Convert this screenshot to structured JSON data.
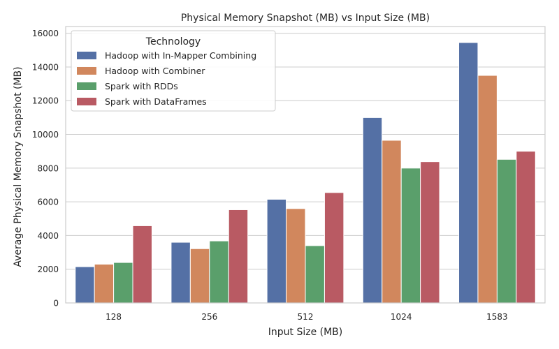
{
  "chart_data": {
    "type": "bar",
    "title": "Physical Memory Snapshot (MB) vs Input Size (MB)",
    "xlabel": "Input Size (MB)",
    "ylabel": "Average Physical Memory Snapshot (MB)",
    "categories": [
      "128",
      "256",
      "512",
      "1024",
      "1583"
    ],
    "ylim": [
      0,
      16400
    ],
    "yticks": [
      0,
      2000,
      4000,
      6000,
      8000,
      10000,
      12000,
      14000,
      16000
    ],
    "grid": true,
    "legend": {
      "title": "Technology",
      "placement": "top-left"
    },
    "series": [
      {
        "name": "Hadoop with In-Mapper Combining",
        "color": "#5470a5",
        "values": [
          2150,
          3600,
          6150,
          11000,
          15450
        ]
      },
      {
        "name": "Hadoop with Combiner",
        "color": "#d1875d",
        "values": [
          2300,
          3220,
          5600,
          9650,
          13500
        ]
      },
      {
        "name": "Spark with RDDs",
        "color": "#5a9f6b",
        "values": [
          2400,
          3680,
          3400,
          8000,
          8520
        ]
      },
      {
        "name": "Spark with DataFrames",
        "color": "#b95a63",
        "values": [
          4580,
          5530,
          6550,
          8380,
          9000
        ]
      }
    ]
  }
}
